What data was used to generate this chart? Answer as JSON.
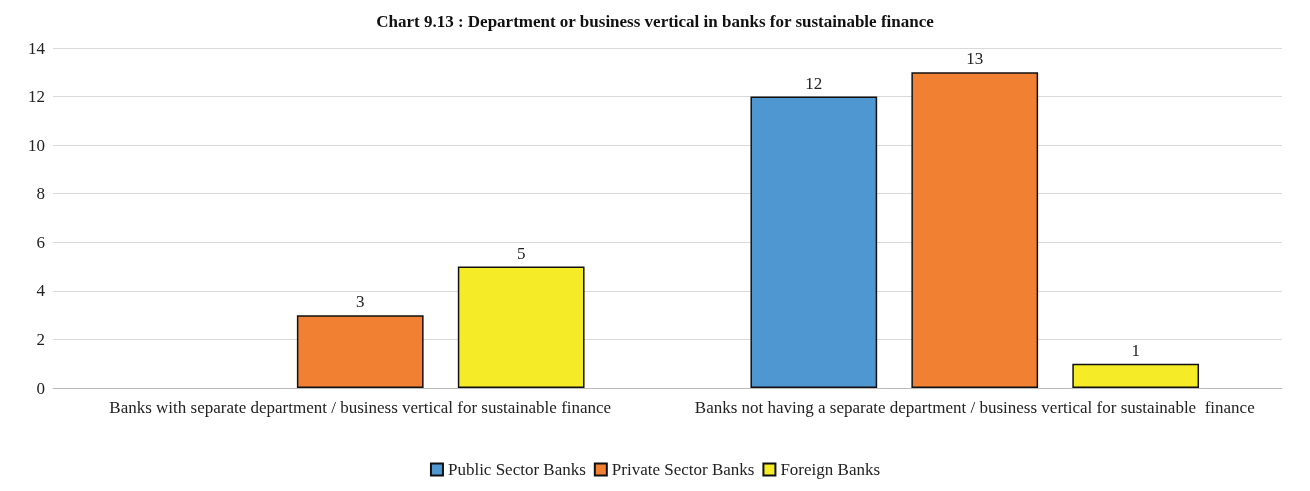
{
  "chart_data": {
    "type": "bar",
    "title": "Chart 9.13 : Department or business vertical in banks for sustainable finance",
    "categories": [
      "Banks with separate department / business vertical for sustainable finance",
      "Banks not having a separate department / business vertical for sustainable  finance"
    ],
    "series": [
      {
        "name": "Public Sector Banks",
        "color": "#4e97d1",
        "values": [
          null,
          12
        ]
      },
      {
        "name": "Private Sector Banks",
        "color": "#f28033",
        "values": [
          3,
          13
        ]
      },
      {
        "name": "Foreign Banks",
        "color": "#f5eb26",
        "values": [
          5,
          1
        ]
      }
    ],
    "ylim": [
      0,
      14
    ],
    "yticks": [
      0,
      2,
      4,
      6,
      8,
      10,
      12,
      14
    ],
    "grid": "y",
    "legend": "bottom",
    "data_labels": true
  }
}
